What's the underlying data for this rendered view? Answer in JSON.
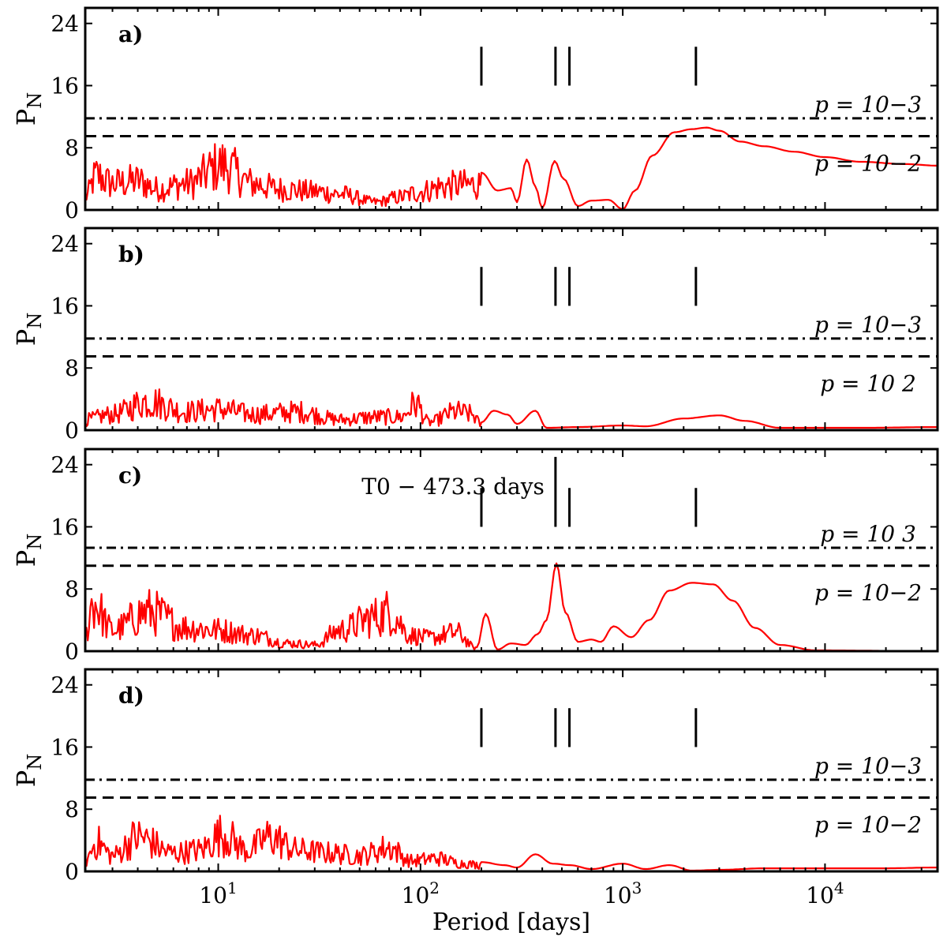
{
  "chart_data": {
    "type": "line",
    "xscale": "log",
    "xlim": [
      2.2,
      36000
    ],
    "ylim": [
      0,
      26
    ],
    "xlabel": "Period [days]",
    "ylabel": "PN",
    "xticks": [
      {
        "value": 10,
        "base": "10",
        "exp": "1"
      },
      {
        "value": 100,
        "base": "10",
        "exp": "2"
      },
      {
        "value": 1000,
        "base": "10",
        "exp": "3"
      },
      {
        "value": 10000,
        "base": "10",
        "exp": "4"
      }
    ],
    "yticks": [
      0,
      8,
      16,
      24
    ],
    "grid": false,
    "line_color": "#ff0000",
    "marker_periods": [
      200,
      465,
      545,
      2300
    ],
    "panels": [
      {
        "label": "a)",
        "threshold_1e3": 11.8,
        "threshold_1e2": 9.5,
        "threshold_1e3_label": "p = 10−3",
        "threshold_1e2_label": "p = 10−2",
        "annotation": "",
        "series": [
          {
            "x": 2.2,
            "y": 2.5
          },
          {
            "x": 2.5,
            "y": 6.5
          },
          {
            "x": 3,
            "y": 5
          },
          {
            "x": 4,
            "y": 5.5
          },
          {
            "x": 5,
            "y": 4
          },
          {
            "x": 7,
            "y": 5
          },
          {
            "x": 10.5,
            "y": 8.5
          },
          {
            "x": 15,
            "y": 5
          },
          {
            "x": 20,
            "y": 4
          },
          {
            "x": 30,
            "y": 3.5
          },
          {
            "x": 40,
            "y": 3
          },
          {
            "x": 60,
            "y": 1.5
          },
          {
            "x": 80,
            "y": 2.5
          },
          {
            "x": 100,
            "y": 3.5
          },
          {
            "x": 130,
            "y": 4.5
          },
          {
            "x": 160,
            "y": 4.8
          },
          {
            "x": 200,
            "y": 4.8
          },
          {
            "x": 240,
            "y": 2.5
          },
          {
            "x": 280,
            "y": 2.8
          },
          {
            "x": 300,
            "y": 1
          },
          {
            "x": 335,
            "y": 6.5
          },
          {
            "x": 370,
            "y": 3
          },
          {
            "x": 400,
            "y": 0.2
          },
          {
            "x": 460,
            "y": 6.3
          },
          {
            "x": 510,
            "y": 4
          },
          {
            "x": 600,
            "y": 0.5
          },
          {
            "x": 700,
            "y": 1.2
          },
          {
            "x": 850,
            "y": 1.3
          },
          {
            "x": 1000,
            "y": 0.1
          },
          {
            "x": 1150,
            "y": 2.5
          },
          {
            "x": 1400,
            "y": 7
          },
          {
            "x": 1800,
            "y": 10
          },
          {
            "x": 2200,
            "y": 10.4
          },
          {
            "x": 2600,
            "y": 10.6
          },
          {
            "x": 3000,
            "y": 10.2
          },
          {
            "x": 3800,
            "y": 8.8
          },
          {
            "x": 5000,
            "y": 8.2
          },
          {
            "x": 7000,
            "y": 7.5
          },
          {
            "x": 10000,
            "y": 6.8
          },
          {
            "x": 15000,
            "y": 6.2
          },
          {
            "x": 25000,
            "y": 5.9
          },
          {
            "x": 36000,
            "y": 5.7
          }
        ]
      },
      {
        "label": "b)",
        "threshold_1e3": 11.8,
        "threshold_1e2": 9.5,
        "threshold_1e3_label": "p = 10−3",
        "threshold_1e2_label": "p = 10 2",
        "annotation": "",
        "series": [
          {
            "x": 2.2,
            "y": 2
          },
          {
            "x": 3,
            "y": 3
          },
          {
            "x": 4.5,
            "y": 5.5
          },
          {
            "x": 7,
            "y": 3.5
          },
          {
            "x": 10,
            "y": 4
          },
          {
            "x": 15,
            "y": 3
          },
          {
            "x": 25,
            "y": 3.5
          },
          {
            "x": 40,
            "y": 2
          },
          {
            "x": 60,
            "y": 2.5
          },
          {
            "x": 80,
            "y": 2.5
          },
          {
            "x": 95,
            "y": 5
          },
          {
            "x": 110,
            "y": 1.5
          },
          {
            "x": 150,
            "y": 3.5
          },
          {
            "x": 180,
            "y": 3
          },
          {
            "x": 200,
            "y": 1
          },
          {
            "x": 230,
            "y": 2.5
          },
          {
            "x": 270,
            "y": 2
          },
          {
            "x": 300,
            "y": 0.8
          },
          {
            "x": 370,
            "y": 2.5
          },
          {
            "x": 420,
            "y": 0.3
          },
          {
            "x": 600,
            "y": 0.4
          },
          {
            "x": 1000,
            "y": 0.6
          },
          {
            "x": 1300,
            "y": 0.5
          },
          {
            "x": 2000,
            "y": 1.5
          },
          {
            "x": 3000,
            "y": 1.9
          },
          {
            "x": 4000,
            "y": 1.2
          },
          {
            "x": 6000,
            "y": 0.3
          },
          {
            "x": 15000,
            "y": 0.3
          },
          {
            "x": 36000,
            "y": 0.4
          }
        ]
      },
      {
        "label": "c)",
        "threshold_1e3": 13.3,
        "threshold_1e2": 11.0,
        "threshold_1e3_label": "p = 10 3",
        "threshold_1e2_label": "p = 10−2",
        "annotation": "T0 − 473.3 days",
        "series": [
          {
            "x": 2.2,
            "y": 3
          },
          {
            "x": 2.4,
            "y": 9.2
          },
          {
            "x": 3,
            "y": 4
          },
          {
            "x": 4.5,
            "y": 7.5
          },
          {
            "x": 7,
            "y": 4.5
          },
          {
            "x": 10,
            "y": 4
          },
          {
            "x": 15,
            "y": 3
          },
          {
            "x": 22,
            "y": 1.5
          },
          {
            "x": 30,
            "y": 1.2
          },
          {
            "x": 40,
            "y": 4
          },
          {
            "x": 60,
            "y": 6.5
          },
          {
            "x": 70,
            "y": 7.5
          },
          {
            "x": 90,
            "y": 3
          },
          {
            "x": 110,
            "y": 2.5
          },
          {
            "x": 150,
            "y": 3.5
          },
          {
            "x": 190,
            "y": 0.5
          },
          {
            "x": 210,
            "y": 4.8
          },
          {
            "x": 240,
            "y": 0.2
          },
          {
            "x": 280,
            "y": 1
          },
          {
            "x": 330,
            "y": 0.8
          },
          {
            "x": 380,
            "y": 2.2
          },
          {
            "x": 420,
            "y": 4
          },
          {
            "x": 470,
            "y": 11.3
          },
          {
            "x": 520,
            "y": 5
          },
          {
            "x": 600,
            "y": 1.2
          },
          {
            "x": 700,
            "y": 1.5
          },
          {
            "x": 780,
            "y": 1.2
          },
          {
            "x": 900,
            "y": 3.2
          },
          {
            "x": 1100,
            "y": 1.8
          },
          {
            "x": 1350,
            "y": 4
          },
          {
            "x": 1700,
            "y": 7.8
          },
          {
            "x": 2200,
            "y": 8.8
          },
          {
            "x": 2800,
            "y": 8.6
          },
          {
            "x": 3500,
            "y": 6.5
          },
          {
            "x": 4500,
            "y": 3
          },
          {
            "x": 6000,
            "y": 0.8
          },
          {
            "x": 9000,
            "y": 0.1
          },
          {
            "x": 36000,
            "y": 0
          }
        ]
      },
      {
        "label": "d)",
        "threshold_1e3": 11.8,
        "threshold_1e2": 9.5,
        "threshold_1e3_label": "p = 10−3",
        "threshold_1e2_label": "p = 10−2",
        "annotation": "",
        "series": [
          {
            "x": 2.2,
            "y": 2
          },
          {
            "x": 2.5,
            "y": 5.5
          },
          {
            "x": 3,
            "y": 3
          },
          {
            "x": 4,
            "y": 6.5
          },
          {
            "x": 6,
            "y": 3.5
          },
          {
            "x": 8,
            "y": 4
          },
          {
            "x": 10.5,
            "y": 7
          },
          {
            "x": 14,
            "y": 4
          },
          {
            "x": 18,
            "y": 6.5
          },
          {
            "x": 25,
            "y": 4
          },
          {
            "x": 35,
            "y": 3.5
          },
          {
            "x": 50,
            "y": 3
          },
          {
            "x": 70,
            "y": 4.5
          },
          {
            "x": 90,
            "y": 2
          },
          {
            "x": 120,
            "y": 2.5
          },
          {
            "x": 160,
            "y": 1.5
          },
          {
            "x": 200,
            "y": 1.2
          },
          {
            "x": 260,
            "y": 0.8
          },
          {
            "x": 300,
            "y": 0.5
          },
          {
            "x": 370,
            "y": 2.2
          },
          {
            "x": 450,
            "y": 1
          },
          {
            "x": 550,
            "y": 0.8
          },
          {
            "x": 700,
            "y": 0.3
          },
          {
            "x": 1000,
            "y": 1
          },
          {
            "x": 1300,
            "y": 0.3
          },
          {
            "x": 1700,
            "y": 0.8
          },
          {
            "x": 2200,
            "y": 0.1
          },
          {
            "x": 3000,
            "y": 0.2
          },
          {
            "x": 5000,
            "y": 0.4
          },
          {
            "x": 10000,
            "y": 0.4
          },
          {
            "x": 20000,
            "y": 0.4
          },
          {
            "x": 36000,
            "y": 0.5
          }
        ]
      }
    ]
  }
}
